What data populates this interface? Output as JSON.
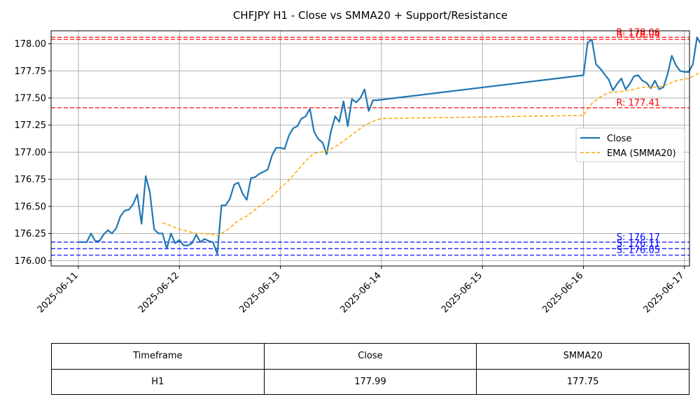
{
  "chart_data": {
    "type": "line",
    "title": "CHFJPY H1 - Close vs SMMA20 + Support/Resistance",
    "xlabel": "",
    "ylabel": "",
    "x_ticks": [
      "2025-06-11",
      "2025-06-12",
      "2025-06-13",
      "2025-06-14",
      "2025-06-15",
      "2025-06-16",
      "2025-06-17"
    ],
    "y_ticks": [
      "176.00",
      "176.25",
      "176.50",
      "176.75",
      "177.00",
      "177.25",
      "177.50",
      "177.75",
      "178.00"
    ],
    "ylim": [
      175.95,
      178.12
    ],
    "xlim_days": [
      -0.27,
      6.05
    ],
    "grid": true,
    "legend_position": "center-right",
    "series": [
      {
        "name": "Close",
        "color": "#1f77b4",
        "style": "solid",
        "points": [
          [
            0.0,
            176.17
          ],
          [
            0.083,
            176.17
          ],
          [
            0.125,
            176.25
          ],
          [
            0.167,
            176.18
          ],
          [
            0.208,
            176.18
          ],
          [
            0.25,
            176.24
          ],
          [
            0.292,
            176.28
          ],
          [
            0.333,
            176.25
          ],
          [
            0.375,
            176.3
          ],
          [
            0.417,
            176.41
          ],
          [
            0.458,
            176.46
          ],
          [
            0.5,
            176.47
          ],
          [
            0.542,
            176.52
          ],
          [
            0.583,
            176.61
          ],
          [
            0.625,
            176.34
          ],
          [
            0.667,
            176.78
          ],
          [
            0.708,
            176.63
          ],
          [
            0.75,
            176.29
          ],
          [
            0.792,
            176.25
          ],
          [
            0.833,
            176.25
          ],
          [
            0.875,
            176.11
          ],
          [
            0.917,
            176.25
          ],
          [
            0.958,
            176.16
          ],
          [
            1.0,
            176.19
          ],
          [
            1.042,
            176.14
          ],
          [
            1.083,
            176.14
          ],
          [
            1.125,
            176.16
          ],
          [
            1.167,
            176.24
          ],
          [
            1.208,
            176.17
          ],
          [
            1.25,
            176.2
          ],
          [
            1.292,
            176.18
          ],
          [
            1.333,
            176.17
          ],
          [
            1.375,
            176.06
          ],
          [
            1.417,
            176.51
          ],
          [
            1.458,
            176.51
          ],
          [
            1.5,
            176.57
          ],
          [
            1.542,
            176.7
          ],
          [
            1.583,
            176.72
          ],
          [
            1.625,
            176.62
          ],
          [
            1.667,
            176.56
          ],
          [
            1.708,
            176.76
          ],
          [
            1.75,
            176.77
          ],
          [
            1.792,
            176.8
          ],
          [
            1.833,
            176.82
          ],
          [
            1.875,
            176.84
          ],
          [
            1.917,
            176.97
          ],
          [
            1.958,
            177.04
          ],
          [
            2.0,
            177.04
          ],
          [
            2.042,
            177.03
          ],
          [
            2.083,
            177.15
          ],
          [
            2.125,
            177.22
          ],
          [
            2.167,
            177.24
          ],
          [
            2.208,
            177.31
          ],
          [
            2.25,
            177.33
          ],
          [
            2.292,
            177.4
          ],
          [
            2.333,
            177.19
          ],
          [
            2.375,
            177.12
          ],
          [
            2.417,
            177.09
          ],
          [
            2.458,
            176.98
          ],
          [
            2.5,
            177.19
          ],
          [
            2.542,
            177.33
          ],
          [
            2.583,
            177.28
          ],
          [
            2.625,
            177.47
          ],
          [
            2.667,
            177.24
          ],
          [
            2.708,
            177.49
          ],
          [
            2.75,
            177.46
          ],
          [
            2.792,
            177.5
          ],
          [
            2.833,
            177.58
          ],
          [
            2.875,
            177.38
          ],
          [
            2.917,
            177.48
          ],
          [
            2.958,
            177.48
          ],
          [
            5.0,
            177.71
          ],
          [
            5.042,
            178.01
          ],
          [
            5.083,
            178.04
          ],
          [
            5.125,
            177.81
          ],
          [
            5.167,
            177.77
          ],
          [
            5.208,
            177.72
          ],
          [
            5.25,
            177.67
          ],
          [
            5.292,
            177.57
          ],
          [
            5.333,
            177.63
          ],
          [
            5.375,
            177.68
          ],
          [
            5.417,
            177.58
          ],
          [
            5.458,
            177.63
          ],
          [
            5.5,
            177.7
          ],
          [
            5.542,
            177.71
          ],
          [
            5.583,
            177.66
          ],
          [
            5.625,
            177.64
          ],
          [
            5.667,
            177.59
          ],
          [
            5.708,
            177.66
          ],
          [
            5.75,
            177.58
          ],
          [
            5.792,
            177.6
          ],
          [
            5.833,
            177.72
          ],
          [
            5.875,
            177.89
          ],
          [
            5.917,
            177.8
          ],
          [
            5.958,
            177.75
          ],
          [
            6.0,
            177.74
          ],
          [
            6.042,
            177.74
          ],
          [
            6.083,
            177.81
          ],
          [
            6.125,
            178.06
          ],
          [
            6.167,
            177.99
          ]
        ]
      },
      {
        "name": "EMA (SMMA20)",
        "color": "#ffa500",
        "style": "dashed",
        "points": [
          [
            0.833,
            176.35
          ],
          [
            0.917,
            176.32
          ],
          [
            1.0,
            176.29
          ],
          [
            1.083,
            176.27
          ],
          [
            1.167,
            176.25
          ],
          [
            1.25,
            176.25
          ],
          [
            1.333,
            176.24
          ],
          [
            1.375,
            176.23
          ],
          [
            1.417,
            176.25
          ],
          [
            1.5,
            176.3
          ],
          [
            1.583,
            176.37
          ],
          [
            1.667,
            176.41
          ],
          [
            1.75,
            176.47
          ],
          [
            1.833,
            176.53
          ],
          [
            1.917,
            176.59
          ],
          [
            2.0,
            176.67
          ],
          [
            2.083,
            176.74
          ],
          [
            2.167,
            176.83
          ],
          [
            2.25,
            176.92
          ],
          [
            2.333,
            176.99
          ],
          [
            2.458,
            177.01
          ],
          [
            2.542,
            177.05
          ],
          [
            2.667,
            177.13
          ],
          [
            2.75,
            177.19
          ],
          [
            2.833,
            177.25
          ],
          [
            2.958,
            177.3
          ],
          [
            3.0,
            177.31
          ],
          [
            5.0,
            177.34
          ],
          [
            5.083,
            177.45
          ],
          [
            5.167,
            177.51
          ],
          [
            5.25,
            177.55
          ],
          [
            5.375,
            177.56
          ],
          [
            5.5,
            177.58
          ],
          [
            5.583,
            177.6
          ],
          [
            5.708,
            177.6
          ],
          [
            5.792,
            177.61
          ],
          [
            5.917,
            177.66
          ],
          [
            6.042,
            177.68
          ],
          [
            6.125,
            177.72
          ],
          [
            6.167,
            177.75
          ]
        ]
      }
    ],
    "levels": [
      {
        "label": "R: 178.06",
        "value": 178.06,
        "kind": "resistance",
        "color": "#ff0000"
      },
      {
        "label": "R: 178.04",
        "value": 178.04,
        "kind": "resistance",
        "color": "#ff0000"
      },
      {
        "label": "R: 177.41",
        "value": 177.41,
        "kind": "resistance",
        "color": "#ff0000"
      },
      {
        "label": "S: 176.17",
        "value": 176.17,
        "kind": "support",
        "color": "#0000ff"
      },
      {
        "label": "S: 176.11",
        "value": 176.11,
        "kind": "support",
        "color": "#0000ff"
      },
      {
        "label": "S: 176.05",
        "value": 176.05,
        "kind": "support",
        "color": "#0000ff"
      }
    ]
  },
  "table": {
    "headers": [
      "Timeframe",
      "Close",
      "SMMA20"
    ],
    "rows": [
      [
        "H1",
        "177.99",
        "177.75"
      ]
    ]
  }
}
